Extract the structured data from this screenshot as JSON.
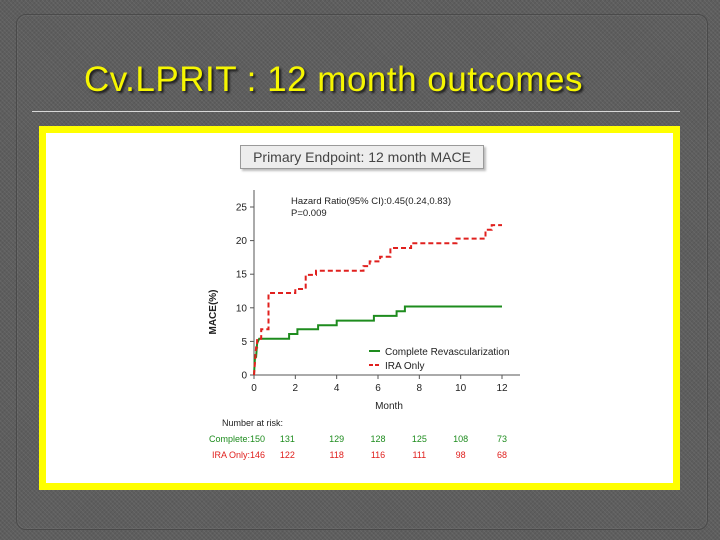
{
  "slide": {
    "title": "Cv.LPRIT : 12 month outcomes"
  },
  "chart_data": {
    "type": "line",
    "title": "Primary Endpoint: 12 month MACE",
    "xlabel": "Month",
    "ylabel": "MACE(%)",
    "xlim": [
      0,
      12.5
    ],
    "ylim": [
      0,
      27
    ],
    "xticks": [
      0,
      2,
      4,
      6,
      8,
      10,
      12
    ],
    "yticks": [
      0,
      5,
      10,
      15,
      20,
      25
    ],
    "annotations": [
      "Hazard Ratio(95% CI):0.45(0.24,0.83)",
      "P=0.009"
    ],
    "legend_position": "lower-right",
    "series": [
      {
        "name": "Complete Revascularization",
        "color": "#1e8c1e",
        "style": "solid",
        "x": [
          0,
          0.05,
          0.1,
          0.15,
          0.25,
          1.7,
          1.7,
          2.1,
          2.1,
          3.1,
          3.1,
          4.0,
          4.0,
          5.8,
          5.8,
          6.9,
          6.9,
          7.3,
          7.3,
          12.0
        ],
        "y": [
          0,
          2.7,
          2.7,
          4.7,
          5.4,
          5.4,
          6.1,
          6.1,
          6.8,
          6.8,
          7.4,
          7.4,
          8.1,
          8.1,
          8.8,
          8.8,
          9.5,
          9.5,
          10.2,
          10.2
        ]
      },
      {
        "name": "IRA Only",
        "color": "#e0201e",
        "style": "dashed",
        "x": [
          0,
          0.1,
          0.15,
          0.15,
          0.35,
          0.35,
          0.7,
          0.7,
          2.0,
          2.0,
          2.5,
          2.5,
          3.0,
          3.0,
          5.3,
          5.3,
          5.6,
          5.6,
          6.1,
          6.1,
          6.6,
          6.6,
          7.6,
          7.6,
          9.8,
          9.8,
          11.2,
          11.2,
          11.5,
          11.5,
          12.0
        ],
        "y": [
          0,
          4.1,
          4.1,
          5.4,
          5.4,
          6.8,
          6.8,
          12.2,
          12.2,
          12.8,
          12.8,
          14.9,
          14.9,
          15.5,
          15.5,
          16.2,
          16.2,
          16.9,
          16.9,
          17.6,
          17.6,
          18.9,
          18.9,
          19.6,
          19.6,
          20.3,
          20.3,
          21.6,
          21.6,
          22.3,
          22.3
        ]
      }
    ],
    "risk_table": {
      "header": "Number at risk:",
      "rows": [
        {
          "label": "Complete:150",
          "color": "#1e8c1e",
          "values": [
            "131",
            "129",
            "128",
            "125",
            "108",
            "73"
          ]
        },
        {
          "label": "IRA Only:146",
          "color": "#e0201e",
          "values": [
            "122",
            "118",
            "116",
            "111",
            "98",
            "68"
          ]
        }
      ]
    }
  }
}
